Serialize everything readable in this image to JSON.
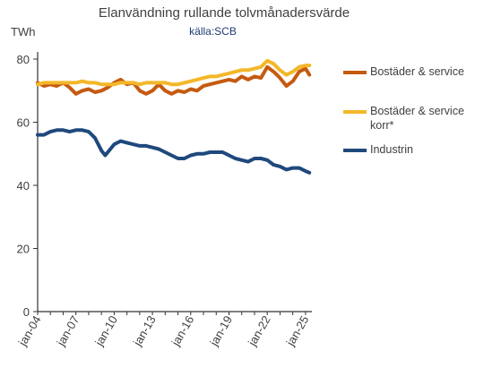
{
  "chart_data": {
    "type": "line",
    "title": "Elanvändning rullande tolvmånadersvärde",
    "subtitle": "källa:SCB",
    "ylabel": "TWh",
    "xlabel": "",
    "ylim": [
      0,
      80
    ],
    "yticks": [
      0,
      20,
      40,
      60,
      80
    ],
    "xticks": [
      "jan-04",
      "jan-07",
      "jan-10",
      "jan-13",
      "jan-16",
      "jan-19",
      "jan-22",
      "jan-25"
    ],
    "xlim": [
      2004.0,
      2025.5
    ],
    "grid": false,
    "legend_position": "right",
    "series": [
      {
        "name": "Bostäder & service",
        "color": "#c55a11",
        "points": [
          [
            2004.0,
            72.5
          ],
          [
            2004.5,
            71.5
          ],
          [
            2005.0,
            72.0
          ],
          [
            2005.5,
            71.5
          ],
          [
            2006.0,
            72.5
          ],
          [
            2006.5,
            71.0
          ],
          [
            2007.0,
            69.0
          ],
          [
            2007.5,
            70.0
          ],
          [
            2008.0,
            70.5
          ],
          [
            2008.5,
            69.5
          ],
          [
            2009.0,
            70.0
          ],
          [
            2009.5,
            71.0
          ],
          [
            2010.0,
            72.5
          ],
          [
            2010.5,
            73.5
          ],
          [
            2011.0,
            72.0
          ],
          [
            2011.5,
            72.5
          ],
          [
            2012.0,
            70.0
          ],
          [
            2012.5,
            69.0
          ],
          [
            2013.0,
            70.0
          ],
          [
            2013.5,
            72.0
          ],
          [
            2014.0,
            70.0
          ],
          [
            2014.5,
            69.0
          ],
          [
            2015.0,
            70.0
          ],
          [
            2015.5,
            69.5
          ],
          [
            2016.0,
            70.5
          ],
          [
            2016.5,
            70.0
          ],
          [
            2017.0,
            71.5
          ],
          [
            2017.5,
            72.0
          ],
          [
            2018.0,
            72.5
          ],
          [
            2018.5,
            73.0
          ],
          [
            2019.0,
            73.5
          ],
          [
            2019.5,
            73.0
          ],
          [
            2020.0,
            74.5
          ],
          [
            2020.5,
            73.5
          ],
          [
            2021.0,
            74.5
          ],
          [
            2021.5,
            74.0
          ],
          [
            2022.0,
            77.5
          ],
          [
            2022.5,
            76.0
          ],
          [
            2023.0,
            74.0
          ],
          [
            2023.5,
            71.5
          ],
          [
            2024.0,
            73.0
          ],
          [
            2024.5,
            76.0
          ],
          [
            2025.0,
            77.0
          ],
          [
            2025.3,
            75.0
          ]
        ]
      },
      {
        "name": "Bostäder & service korr*",
        "color": "#f4b729",
        "points": [
          [
            2004.0,
            72.0
          ],
          [
            2004.5,
            72.5
          ],
          [
            2005.0,
            72.5
          ],
          [
            2005.5,
            72.5
          ],
          [
            2006.0,
            72.5
          ],
          [
            2006.5,
            72.5
          ],
          [
            2007.0,
            72.5
          ],
          [
            2007.5,
            73.0
          ],
          [
            2008.0,
            72.5
          ],
          [
            2008.5,
            72.5
          ],
          [
            2009.0,
            72.0
          ],
          [
            2009.5,
            72.0
          ],
          [
            2010.0,
            72.0
          ],
          [
            2010.5,
            72.5
          ],
          [
            2011.0,
            72.5
          ],
          [
            2011.5,
            72.5
          ],
          [
            2012.0,
            72.0
          ],
          [
            2012.5,
            72.5
          ],
          [
            2013.0,
            72.5
          ],
          [
            2013.5,
            72.5
          ],
          [
            2014.0,
            72.5
          ],
          [
            2014.5,
            72.0
          ],
          [
            2015.0,
            72.0
          ],
          [
            2015.5,
            72.5
          ],
          [
            2016.0,
            73.0
          ],
          [
            2016.5,
            73.5
          ],
          [
            2017.0,
            74.0
          ],
          [
            2017.5,
            74.5
          ],
          [
            2018.0,
            74.5
          ],
          [
            2018.5,
            75.0
          ],
          [
            2019.0,
            75.5
          ],
          [
            2019.5,
            76.0
          ],
          [
            2020.0,
            76.5
          ],
          [
            2020.5,
            76.5
          ],
          [
            2021.0,
            77.0
          ],
          [
            2021.5,
            77.5
          ],
          [
            2022.0,
            79.5
          ],
          [
            2022.5,
            78.5
          ],
          [
            2023.0,
            76.5
          ],
          [
            2023.5,
            75.0
          ],
          [
            2024.0,
            76.0
          ],
          [
            2024.5,
            77.5
          ],
          [
            2025.0,
            78.0
          ],
          [
            2025.3,
            78.0
          ]
        ]
      },
      {
        "name": "Industrin",
        "color": "#1f497d",
        "points": [
          [
            2004.0,
            56.0
          ],
          [
            2004.5,
            56.0
          ],
          [
            2005.0,
            57.0
          ],
          [
            2005.5,
            57.5
          ],
          [
            2006.0,
            57.5
          ],
          [
            2006.5,
            57.0
          ],
          [
            2007.0,
            57.5
          ],
          [
            2007.5,
            57.5
          ],
          [
            2008.0,
            57.0
          ],
          [
            2008.5,
            55.0
          ],
          [
            2009.0,
            51.0
          ],
          [
            2009.3,
            49.5
          ],
          [
            2009.7,
            51.5
          ],
          [
            2010.0,
            53.0
          ],
          [
            2010.5,
            54.0
          ],
          [
            2011.0,
            53.5
          ],
          [
            2011.5,
            53.0
          ],
          [
            2012.0,
            52.5
          ],
          [
            2012.5,
            52.5
          ],
          [
            2013.0,
            52.0
          ],
          [
            2013.5,
            51.5
          ],
          [
            2014.0,
            50.5
          ],
          [
            2014.5,
            49.5
          ],
          [
            2015.0,
            48.5
          ],
          [
            2015.5,
            48.5
          ],
          [
            2016.0,
            49.5
          ],
          [
            2016.5,
            50.0
          ],
          [
            2017.0,
            50.0
          ],
          [
            2017.5,
            50.5
          ],
          [
            2018.0,
            50.5
          ],
          [
            2018.5,
            50.5
          ],
          [
            2019.0,
            49.5
          ],
          [
            2019.5,
            48.5
          ],
          [
            2020.0,
            48.0
          ],
          [
            2020.5,
            47.5
          ],
          [
            2021.0,
            48.5
          ],
          [
            2021.5,
            48.5
          ],
          [
            2022.0,
            48.0
          ],
          [
            2022.5,
            46.5
          ],
          [
            2023.0,
            46.0
          ],
          [
            2023.5,
            45.0
          ],
          [
            2024.0,
            45.5
          ],
          [
            2024.5,
            45.5
          ],
          [
            2025.0,
            44.5
          ],
          [
            2025.3,
            44.0
          ]
        ]
      }
    ]
  },
  "legend": {
    "items": [
      {
        "label": "Bostäder & service",
        "color": "#c55a11"
      },
      {
        "label": "Bostäder & service korr*",
        "color": "#f4b729"
      },
      {
        "label": "Industrin",
        "color": "#1f497d"
      }
    ]
  }
}
